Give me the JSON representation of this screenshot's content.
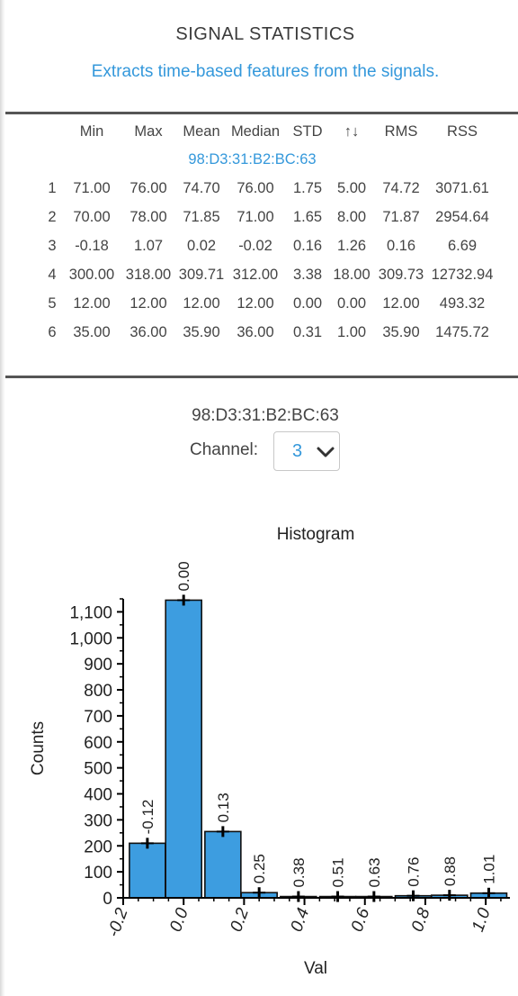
{
  "header": {
    "title": "SIGNAL STATISTICS",
    "subtitle": "Extracts time-based features from the signals."
  },
  "stats_table": {
    "columns": [
      "",
      "Min",
      "Max",
      "Mean",
      "Median",
      "STD",
      "↑↓",
      "RMS",
      "RSS"
    ],
    "device": "98:D3:31:B2:BC:63",
    "rows": [
      [
        "1",
        "71.00",
        "76.00",
        "74.70",
        "76.00",
        "1.75",
        "5.00",
        "74.72",
        "3071.61"
      ],
      [
        "2",
        "70.00",
        "78.00",
        "71.85",
        "71.00",
        "1.65",
        "8.00",
        "71.87",
        "2954.64"
      ],
      [
        "3",
        "-0.18",
        "1.07",
        "0.02",
        "-0.02",
        "0.16",
        "1.26",
        "0.16",
        "6.69"
      ],
      [
        "4",
        "300.00",
        "318.00",
        "309.71",
        "312.00",
        "3.38",
        "18.00",
        "309.73",
        "12732.94"
      ],
      [
        "5",
        "12.00",
        "12.00",
        "12.00",
        "12.00",
        "0.00",
        "0.00",
        "12.00",
        "493.32"
      ],
      [
        "6",
        "35.00",
        "36.00",
        "35.90",
        "36.00",
        "0.31",
        "1.00",
        "35.90",
        "1475.72"
      ]
    ]
  },
  "channel_panel": {
    "device": "98:D3:31:B2:BC:63",
    "channel_label": "Channel:",
    "channel_value": "3",
    "select_icon": "chevron-down-icon"
  },
  "colors": {
    "accent": "#3498db",
    "bar_fill": "#3d9de0",
    "bar_stroke": "#111111",
    "rule": "#555555"
  },
  "chart_data": {
    "type": "bar",
    "title": "Histogram",
    "xlabel": "Val",
    "ylabel": "Counts",
    "xlim": [
      -0.2,
      1.08
    ],
    "ylim": [
      0,
      1150
    ],
    "x_ticks": [
      "-0.2",
      "0.0",
      "0.2",
      "0.4",
      "0.6",
      "0.8",
      "1.0"
    ],
    "x_tick_values": [
      -0.2,
      0.0,
      0.2,
      0.4,
      0.6,
      0.8,
      1.0
    ],
    "y_ticks": [
      "0",
      "100",
      "200",
      "300",
      "400",
      "500",
      "600",
      "700",
      "800",
      "900",
      "1,000",
      "1,100"
    ],
    "y_tick_values": [
      0,
      100,
      200,
      300,
      400,
      500,
      600,
      700,
      800,
      900,
      1000,
      1100
    ],
    "bar_width": 0.125,
    "bars": [
      {
        "label": "-0.12",
        "x": -0.12,
        "value": 210
      },
      {
        "label": "0.00",
        "x": 0.0,
        "value": 1145
      },
      {
        "label": "0.13",
        "x": 0.13,
        "value": 255
      },
      {
        "label": "0.25",
        "x": 0.25,
        "value": 20
      },
      {
        "label": "0.38",
        "x": 0.38,
        "value": 5
      },
      {
        "label": "0.51",
        "x": 0.51,
        "value": 5
      },
      {
        "label": "0.63",
        "x": 0.63,
        "value": 5
      },
      {
        "label": "0.76",
        "x": 0.76,
        "value": 8
      },
      {
        "label": "0.88",
        "x": 0.88,
        "value": 10
      },
      {
        "label": "1.01",
        "x": 1.01,
        "value": 18
      }
    ]
  }
}
